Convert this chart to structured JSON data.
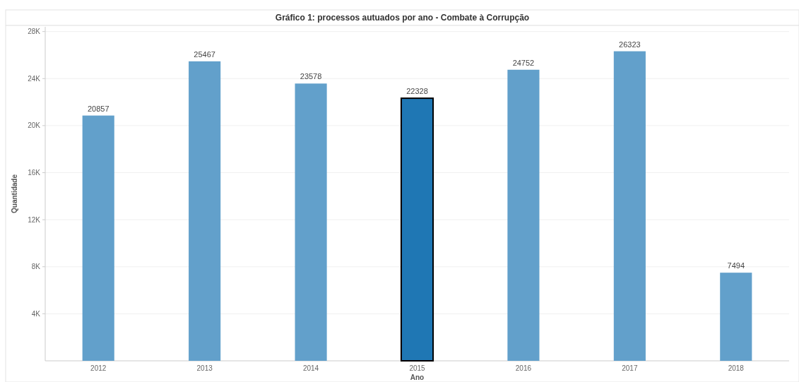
{
  "chart_data": {
    "type": "bar",
    "title": "Gráfico 1: processos autuados por ano - Combate à Corrupção",
    "xlabel": "Ano",
    "ylabel": "Quantidade",
    "categories": [
      "2012",
      "2013",
      "2014",
      "2015",
      "2016",
      "2017",
      "2018"
    ],
    "values": [
      20857,
      25467,
      23578,
      22328,
      24752,
      26323,
      7494
    ],
    "colors": [
      "#62a0cb",
      "#62a0cb",
      "#62a0cb",
      "#1f77b4",
      "#62a0cb",
      "#62a0cb",
      "#62a0cb"
    ],
    "data_labels": true,
    "ylim": [
      0,
      28400
    ],
    "yticks": [
      {
        "value": 4000,
        "label": "4K"
      },
      {
        "value": 8000,
        "label": "8K"
      },
      {
        "value": 12000,
        "label": "12K"
      },
      {
        "value": 16000,
        "label": "16K"
      },
      {
        "value": 20000,
        "label": "20K"
      },
      {
        "value": 24000,
        "label": "24K"
      },
      {
        "value": 28000,
        "label": "28K"
      }
    ],
    "grid": "y"
  }
}
